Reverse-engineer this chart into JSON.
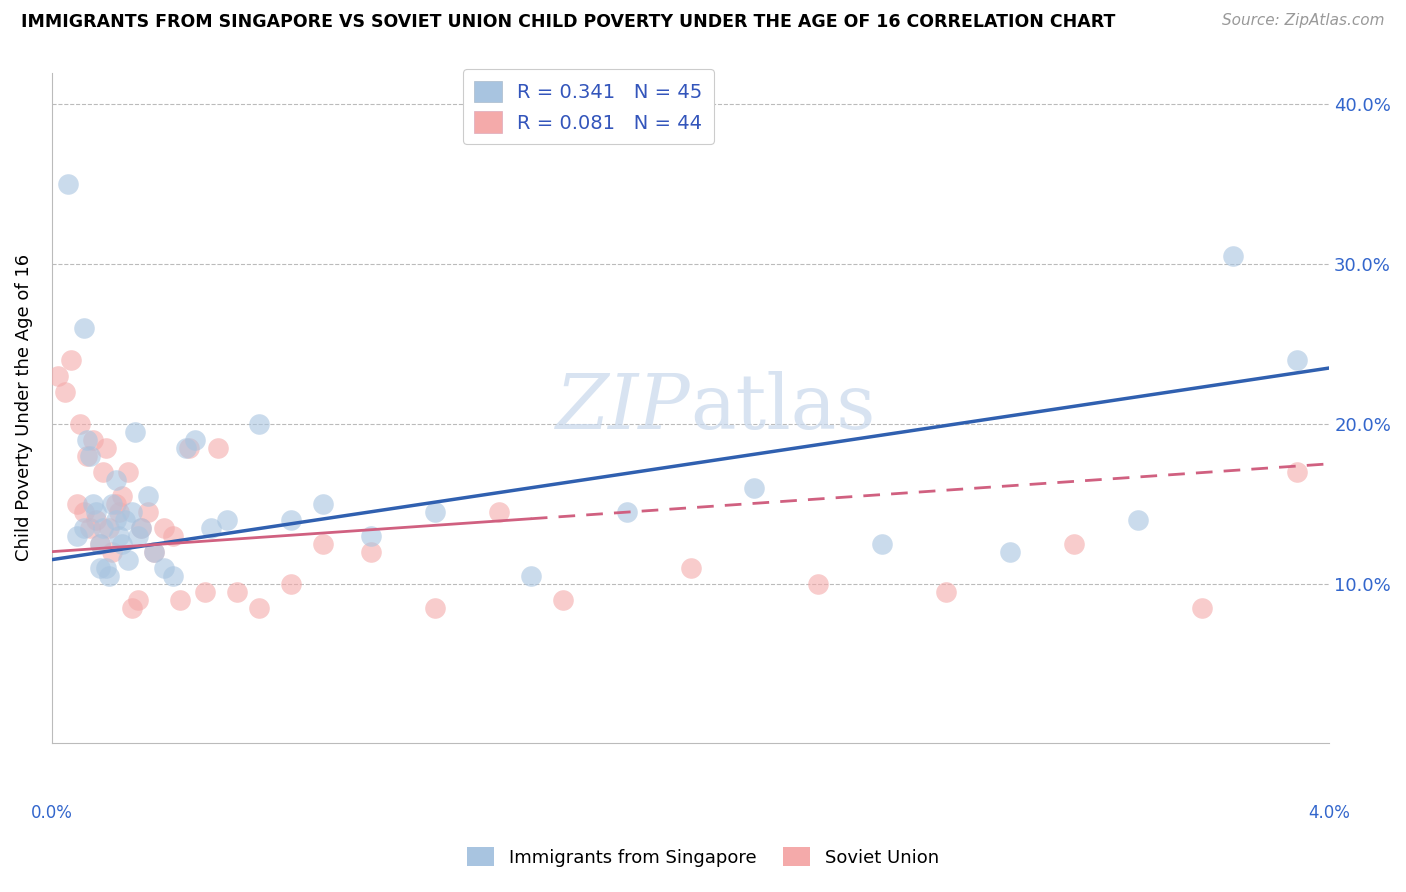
{
  "title": "IMMIGRANTS FROM SINGAPORE VS SOVIET UNION CHILD POVERTY UNDER THE AGE OF 16 CORRELATION CHART",
  "source": "Source: ZipAtlas.com",
  "ylabel": "Child Poverty Under the Age of 16",
  "xlim": [
    0.0,
    4.0
  ],
  "ylim": [
    0.0,
    42.0
  ],
  "yticks": [
    0.0,
    10.0,
    20.0,
    30.0,
    40.0
  ],
  "ytick_labels": [
    "",
    "10.0%",
    "20.0%",
    "30.0%",
    "40.0%"
  ],
  "watermark": "ZIPatlas",
  "blue_color": "#A8C4E0",
  "pink_color": "#F4AAAA",
  "trend_blue": "#3060B0",
  "trend_pink": "#D06080",
  "sg_trend_x0": 0.0,
  "sg_trend_y0": 11.5,
  "sg_trend_x1": 4.0,
  "sg_trend_y1": 23.5,
  "sv_trend_x0": 0.0,
  "sv_trend_y0": 12.0,
  "sv_trend_x1": 4.0,
  "sv_trend_y1": 17.5,
  "singapore_x": [
    0.05,
    0.08,
    0.1,
    0.1,
    0.11,
    0.12,
    0.13,
    0.14,
    0.15,
    0.15,
    0.16,
    0.17,
    0.18,
    0.19,
    0.2,
    0.2,
    0.21,
    0.22,
    0.23,
    0.24,
    0.25,
    0.26,
    0.27,
    0.28,
    0.3,
    0.32,
    0.35,
    0.38,
    0.42,
    0.45,
    0.5,
    0.55,
    0.65,
    0.75,
    0.85,
    1.0,
    1.2,
    1.5,
    1.8,
    2.2,
    2.6,
    3.0,
    3.4,
    3.7,
    3.9
  ],
  "singapore_y": [
    35.0,
    13.0,
    26.0,
    13.5,
    19.0,
    18.0,
    15.0,
    14.5,
    12.5,
    11.0,
    13.5,
    11.0,
    10.5,
    15.0,
    14.0,
    16.5,
    13.0,
    12.5,
    14.0,
    11.5,
    14.5,
    19.5,
    13.0,
    13.5,
    15.5,
    12.0,
    11.0,
    10.5,
    18.5,
    19.0,
    13.5,
    14.0,
    20.0,
    14.0,
    15.0,
    13.0,
    14.5,
    10.5,
    14.5,
    16.0,
    12.5,
    12.0,
    14.0,
    30.5,
    24.0
  ],
  "soviet_x": [
    0.02,
    0.04,
    0.06,
    0.08,
    0.09,
    0.1,
    0.11,
    0.12,
    0.13,
    0.14,
    0.15,
    0.16,
    0.17,
    0.18,
    0.19,
    0.2,
    0.21,
    0.22,
    0.24,
    0.25,
    0.27,
    0.28,
    0.3,
    0.32,
    0.35,
    0.38,
    0.4,
    0.43,
    0.48,
    0.52,
    0.58,
    0.65,
    0.75,
    0.85,
    1.0,
    1.2,
    1.4,
    1.6,
    2.0,
    2.4,
    2.8,
    3.2,
    3.6,
    3.9
  ],
  "soviet_y": [
    23.0,
    22.0,
    24.0,
    15.0,
    20.0,
    14.5,
    18.0,
    13.5,
    19.0,
    14.0,
    12.5,
    17.0,
    18.5,
    13.5,
    12.0,
    15.0,
    14.5,
    15.5,
    17.0,
    8.5,
    9.0,
    13.5,
    14.5,
    12.0,
    13.5,
    13.0,
    9.0,
    18.5,
    9.5,
    18.5,
    9.5,
    8.5,
    10.0,
    12.5,
    12.0,
    8.5,
    14.5,
    9.0,
    11.0,
    10.0,
    9.5,
    12.5,
    8.5,
    17.0
  ]
}
